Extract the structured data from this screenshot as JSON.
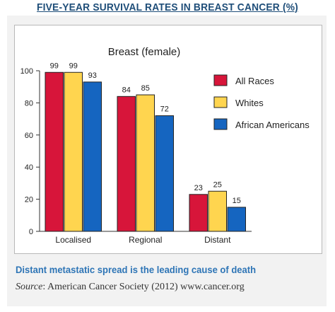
{
  "header": {
    "title": "FIVE-YEAR SURVIVAL RATES IN BREAST CANCER (%)"
  },
  "chart_data": {
    "type": "bar",
    "title": "Breast (female)",
    "categories": [
      "Localised",
      "Regional",
      "Distant"
    ],
    "series": [
      {
        "name": "All Races",
        "values": [
          99,
          84,
          23
        ],
        "color": "#d7153a"
      },
      {
        "name": "Whites",
        "values": [
          99,
          85,
          25
        ],
        "color": "#ffd54f"
      },
      {
        "name": "African Americans",
        "values": [
          93,
          72,
          15
        ],
        "color": "#1565c0"
      }
    ],
    "yticks": [
      "0",
      "20",
      "40",
      "60",
      "80",
      "100"
    ],
    "ylim": [
      0,
      100
    ],
    "grid": false,
    "legend": "right"
  },
  "caption": {
    "text": "Distant metastatic spread is the leading cause of death"
  },
  "source": {
    "label": "Source",
    "text": ": American Cancer Society (2012) www.cancer.org"
  }
}
